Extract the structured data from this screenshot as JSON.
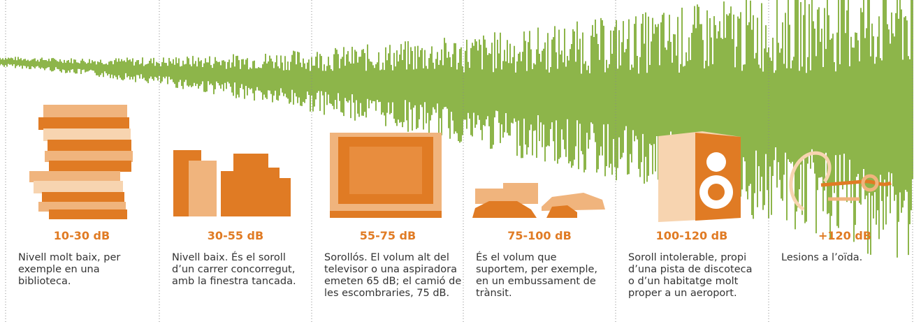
{
  "panels": [
    {
      "label": "10-30 dB",
      "lines": [
        "Nivell molt baix, per",
        "exemple en una",
        "biblioteca."
      ]
    },
    {
      "label": "30-55 dB",
      "lines": [
        "Nivell baix. És el soroll",
        "d’un carrer concorregut,",
        "amb la finestra tancada."
      ]
    },
    {
      "label": "55-75 dB",
      "lines": [
        "Sorollós. El volum alt del",
        "televisor o una aspiradora",
        "emeten 65 dB; el camió de",
        "les escombraries, 75 dB."
      ]
    },
    {
      "label": "75-100 dB",
      "lines": [
        "És el volum que",
        "suportem, per exemple,",
        "en un embussament de",
        "trànsit."
      ]
    },
    {
      "label": "100-120 dB",
      "lines": [
        "Soroll intolerable, propi",
        "d’una pista de discoteca",
        "o d’un habitatge molt",
        "proper a un aeroport."
      ]
    },
    {
      "label": "+120 dB",
      "lines": [
        "Lesions a l’oïda."
      ]
    }
  ]
}
